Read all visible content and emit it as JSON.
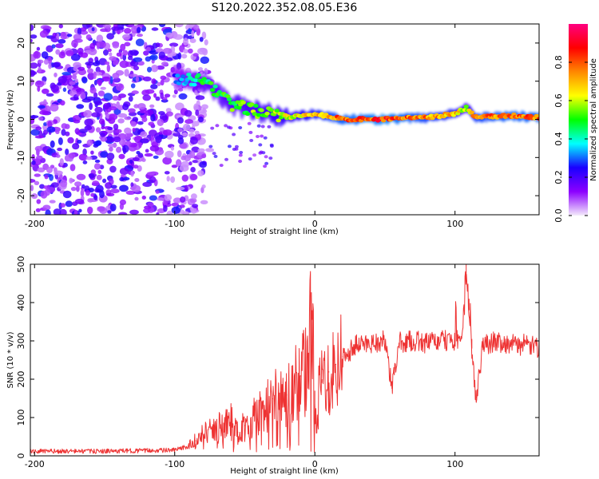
{
  "title": "S120.2022.352.08.05.E36",
  "colorbar": {
    "label": "Normalized spectral amplitude",
    "ticks": [
      "0.0",
      "0.2",
      "0.4",
      "0.6",
      "0.8"
    ],
    "colors": [
      "#f4ecfb",
      "#8c00ff",
      "#1a00ff",
      "#00ffff",
      "#00ff00",
      "#ffff00",
      "#ff8800",
      "#ff0000",
      "#ff0080"
    ]
  },
  "chart_data": [
    {
      "type": "heatmap",
      "title": "S120.2022.352.08.05.E36",
      "xlabel": "Height of straight line (km)",
      "ylabel": "Frequency (Hz)",
      "xlim": [
        -203,
        160
      ],
      "ylim": [
        -25,
        25
      ],
      "x_ticks": [
        "-200",
        "-100",
        "0",
        "100"
      ],
      "x_tick_values": [
        -200,
        -100,
        0,
        100
      ],
      "y_ticks": [
        "20",
        "10",
        "0",
        "-10",
        "-20"
      ],
      "y_tick_values": [
        20,
        10,
        0,
        -10,
        -20
      ],
      "colorbar_range": [
        0.0,
        1.0
      ],
      "description_series": [
        {
          "name": "noise_region",
          "x_range": [
            -203,
            -90
          ],
          "f_range": [
            -25,
            25
          ],
          "amplitude": 0.25
        },
        {
          "name": "signal_band",
          "x": [
            -100,
            -80,
            -60,
            -40,
            -20,
            0,
            20,
            50,
            80,
            100,
            108,
            115,
            140,
            160
          ],
          "f": [
            11,
            10,
            4,
            2,
            0.5,
            1.5,
            0,
            0,
            0.5,
            1.5,
            3,
            0.5,
            1,
            0.5
          ],
          "amplitude": [
            0.3,
            0.5,
            0.55,
            0.6,
            0.65,
            0.75,
            0.85,
            0.9,
            0.8,
            0.75,
            0.6,
            0.8,
            0.85,
            0.85
          ]
        }
      ]
    },
    {
      "type": "line",
      "xlabel": "Height of straight line (km)",
      "ylabel": "SNR (10 * v/v)",
      "xlim": [
        -203,
        160
      ],
      "ylim": [
        0,
        500
      ],
      "x_ticks": [
        "-200",
        "-100",
        "0",
        "100"
      ],
      "x_tick_values": [
        -200,
        -100,
        0,
        100
      ],
      "y_ticks": [
        "0",
        "100",
        "200",
        "300",
        "400",
        "500"
      ],
      "y_tick_values": [
        0,
        100,
        200,
        300,
        400,
        500
      ],
      "series": [
        {
          "name": "SNR",
          "color": "#ee3333",
          "x": [
            -203,
            -150,
            -100,
            -90,
            -85,
            -80,
            -70,
            -60,
            -55,
            -50,
            -40,
            -30,
            -25,
            -20,
            -10,
            -5,
            -2,
            0,
            5,
            10,
            15,
            20,
            25,
            30,
            40,
            50,
            55,
            60,
            70,
            80,
            90,
            100,
            105,
            108,
            110,
            112,
            115,
            120,
            130,
            140,
            150,
            160
          ],
          "y": [
            12,
            12,
            15,
            25,
            40,
            55,
            70,
            90,
            60,
            80,
            110,
            150,
            140,
            160,
            210,
            230,
            380,
            100,
            200,
            220,
            240,
            260,
            275,
            290,
            295,
            300,
            175,
            295,
            300,
            295,
            300,
            300,
            310,
            500,
            380,
            280,
            150,
            290,
            300,
            290,
            290,
            280
          ]
        }
      ]
    }
  ]
}
